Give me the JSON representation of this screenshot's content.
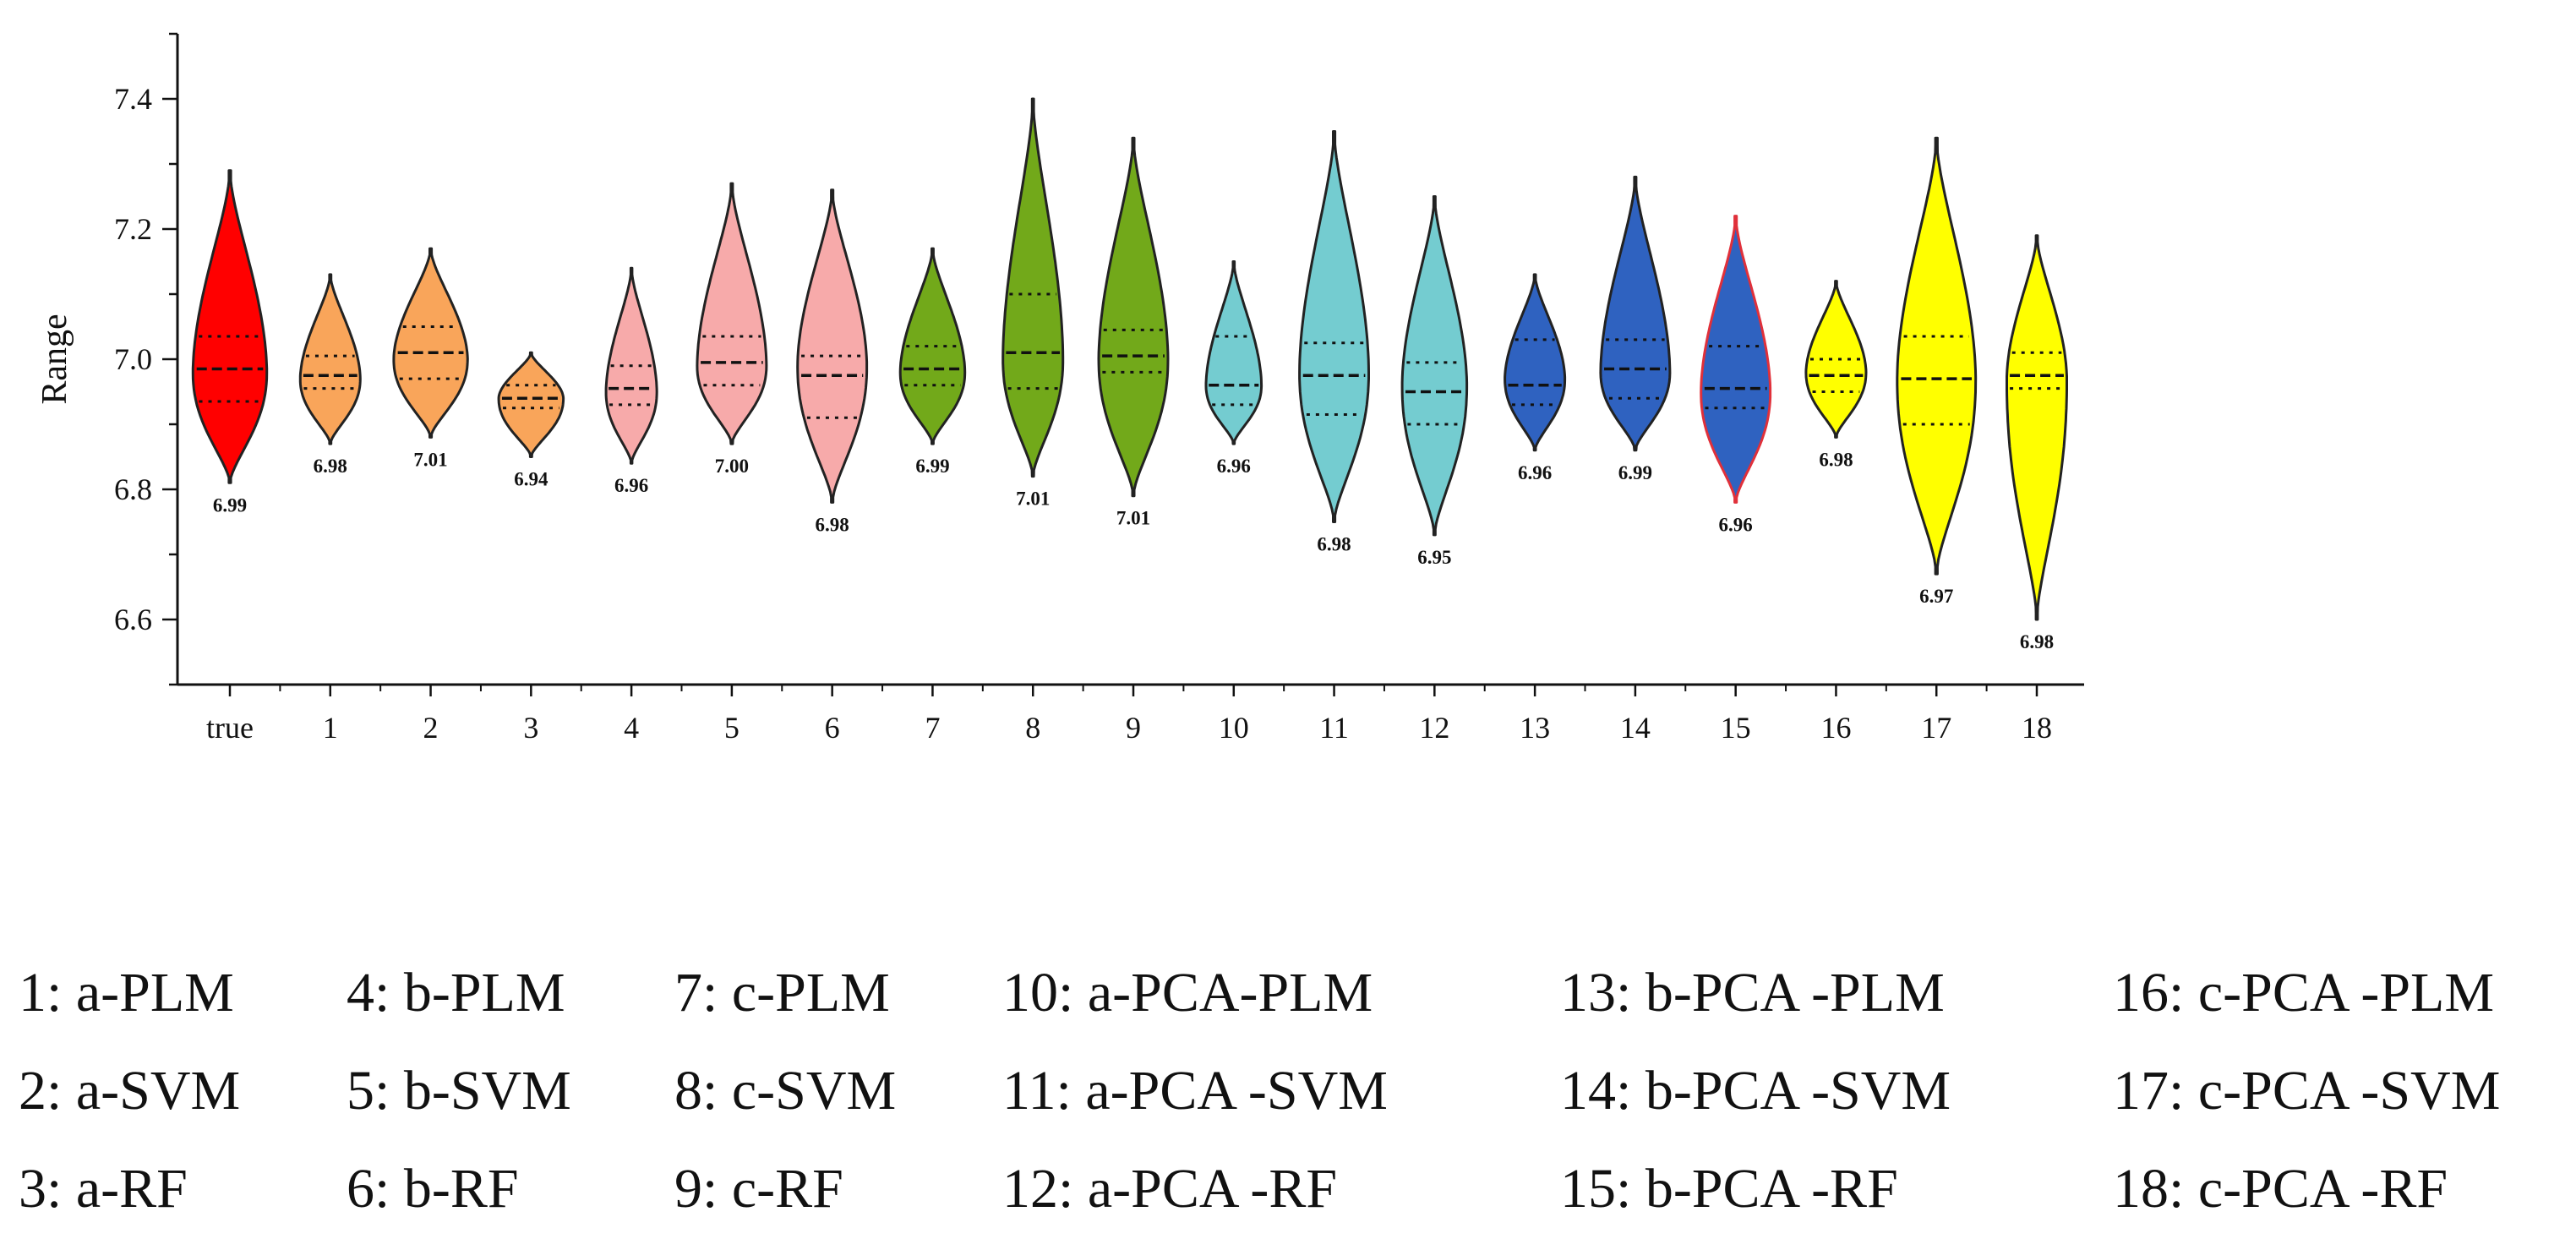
{
  "chart_data": {
    "type": "violin",
    "ylabel": "Range",
    "xlabel": "",
    "ylim": [
      6.5,
      7.5
    ],
    "yticks": [
      6.6,
      6.8,
      7.0,
      7.2,
      7.4
    ],
    "ytick_labels": [
      "6.6",
      "6.8",
      "7.0",
      "7.2",
      "7.4"
    ],
    "categories": [
      "true",
      "1",
      "2",
      "3",
      "4",
      "5",
      "6",
      "7",
      "8",
      "9",
      "10",
      "11",
      "12",
      "13",
      "14",
      "15",
      "16",
      "17",
      "18"
    ],
    "colors": [
      "#ff0000",
      "#f9a55a",
      "#f9a55a",
      "#f9a55a",
      "#f7aaaa",
      "#f7aaaa",
      "#f7aaaa",
      "#72a91a",
      "#72a91a",
      "#72a91a",
      "#74ccd0",
      "#74ccd0",
      "#74ccd0",
      "#2f62c0",
      "#2f62c0",
      "#2f62c0",
      "#ffff00",
      "#ffff00",
      "#ffff00"
    ],
    "outline_colors": [
      "#222222",
      "#222222",
      "#222222",
      "#222222",
      "#222222",
      "#222222",
      "#222222",
      "#222222",
      "#222222",
      "#222222",
      "#222222",
      "#222222",
      "#222222",
      "#222222",
      "#222222",
      "#e0303a",
      "#222222",
      "#222222",
      "#222222"
    ],
    "violins": [
      {
        "min": 6.81,
        "max": 7.29,
        "q1": 6.935,
        "median": 6.985,
        "q3": 7.035,
        "mode": 6.98,
        "width": 0.8
      },
      {
        "min": 6.87,
        "max": 7.13,
        "q1": 6.955,
        "median": 6.975,
        "q3": 7.005,
        "mode": 6.97,
        "width": 0.65
      },
      {
        "min": 6.88,
        "max": 7.17,
        "q1": 6.97,
        "median": 7.01,
        "q3": 7.05,
        "mode": 7.0,
        "width": 0.8
      },
      {
        "min": 6.85,
        "max": 7.01,
        "q1": 6.925,
        "median": 6.94,
        "q3": 6.96,
        "mode": 6.94,
        "width": 0.7
      },
      {
        "min": 6.84,
        "max": 7.14,
        "q1": 6.93,
        "median": 6.955,
        "q3": 6.99,
        "mode": 6.95,
        "width": 0.55
      },
      {
        "min": 6.87,
        "max": 7.27,
        "q1": 6.96,
        "median": 6.995,
        "q3": 7.035,
        "mode": 6.99,
        "width": 0.75
      },
      {
        "min": 6.78,
        "max": 7.26,
        "q1": 6.91,
        "median": 6.975,
        "q3": 7.005,
        "mode": 6.99,
        "width": 0.75
      },
      {
        "min": 6.87,
        "max": 7.17,
        "q1": 6.96,
        "median": 6.985,
        "q3": 7.02,
        "mode": 6.98,
        "width": 0.7
      },
      {
        "min": 6.82,
        "max": 7.4,
        "q1": 6.955,
        "median": 7.01,
        "q3": 7.1,
        "mode": 7.0,
        "width": 0.65
      },
      {
        "min": 6.79,
        "max": 7.34,
        "q1": 6.98,
        "median": 7.005,
        "q3": 7.045,
        "mode": 7.0,
        "width": 0.75
      },
      {
        "min": 6.87,
        "max": 7.15,
        "q1": 6.93,
        "median": 6.96,
        "q3": 7.035,
        "mode": 6.96,
        "width": 0.6
      },
      {
        "min": 6.75,
        "max": 7.35,
        "q1": 6.915,
        "median": 6.975,
        "q3": 7.025,
        "mode": 6.98,
        "width": 0.75
      },
      {
        "min": 6.73,
        "max": 7.25,
        "q1": 6.9,
        "median": 6.95,
        "q3": 6.995,
        "mode": 6.96,
        "width": 0.7
      },
      {
        "min": 6.86,
        "max": 7.13,
        "q1": 6.93,
        "median": 6.96,
        "q3": 7.03,
        "mode": 6.97,
        "width": 0.65
      },
      {
        "min": 6.86,
        "max": 7.28,
        "q1": 6.94,
        "median": 6.985,
        "q3": 7.03,
        "mode": 6.98,
        "width": 0.75
      },
      {
        "min": 6.78,
        "max": 7.22,
        "q1": 6.925,
        "median": 6.955,
        "q3": 7.02,
        "mode": 6.95,
        "width": 0.75
      },
      {
        "min": 6.88,
        "max": 7.12,
        "q1": 6.95,
        "median": 6.975,
        "q3": 7.0,
        "mode": 6.98,
        "width": 0.65
      },
      {
        "min": 6.67,
        "max": 7.34,
        "q1": 6.9,
        "median": 6.97,
        "q3": 7.035,
        "mode": 6.97,
        "width": 0.85
      },
      {
        "min": 6.6,
        "max": 7.19,
        "q1": 6.955,
        "median": 6.975,
        "q3": 7.01,
        "mode": 6.97,
        "width": 0.65
      }
    ],
    "data_labels": [
      "6.99",
      "6.98",
      "7.01",
      "6.94",
      "6.96",
      "7.00",
      "6.98",
      "6.99",
      "7.01",
      "7.01",
      "6.96",
      "6.98",
      "6.95",
      "6.96",
      "6.99",
      "6.96",
      "6.98",
      "6.97",
      "6.98"
    ],
    "legend": [
      "1: a-PLM",
      "2: a-SVM",
      "3: a-RF",
      "4: b-PLM",
      "5: b-SVM",
      "6: b-RF",
      "7: c-PLM",
      "8: c-SVM",
      "9: c-RF",
      "10: a-PCA-PLM",
      "11: a-PCA -SVM",
      "12: a-PCA -RF",
      "13: b-PCA -PLM",
      "14: b-PCA -SVM",
      "15: b-PCA -RF",
      "16: c-PCA -PLM",
      "17: c-PCA -SVM",
      "18: c-PCA -RF"
    ]
  }
}
